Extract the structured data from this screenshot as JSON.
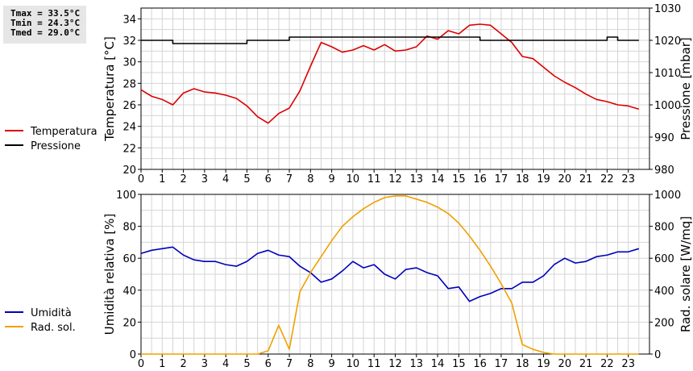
{
  "stats": {
    "tmax": "Tmax = 33.5°C",
    "tmin": "Tmin = 24.3°C",
    "tmed": "Tmed = 29.0°C"
  },
  "chart_data": [
    {
      "type": "line",
      "x_ticks": [
        "0",
        "1",
        "2",
        "3",
        "4",
        "5",
        "6",
        "7",
        "8",
        "9",
        "10",
        "11",
        "12",
        "13",
        "14",
        "15",
        "16",
        "17",
        "18",
        "19",
        "20",
        "21",
        "22",
        "23"
      ],
      "xlim": [
        0,
        24
      ],
      "ylabel": "Temperatura [°C]",
      "ylim": [
        20,
        35
      ],
      "y_ticks": [
        20,
        22,
        24,
        26,
        28,
        30,
        32,
        34
      ],
      "y2label": "Pressione [mbar]",
      "y2lim": [
        980,
        1030
      ],
      "y2_ticks": [
        980,
        990,
        1000,
        1010,
        1020,
        1030
      ],
      "grid": true,
      "legend_position": "left",
      "series": [
        {
          "name": "Temperatura",
          "axis": "left",
          "color": "#dd0000",
          "x": [
            0,
            0.5,
            1,
            1.5,
            2,
            2.5,
            3,
            3.5,
            4,
            4.5,
            5,
            5.5,
            6,
            6.5,
            7,
            7.5,
            8,
            8.5,
            9,
            9.5,
            10,
            10.5,
            11,
            11.5,
            12,
            12.5,
            13,
            13.5,
            14,
            14.5,
            15,
            15.5,
            16,
            16.5,
            17,
            17.5,
            18,
            18.5,
            19,
            19.5,
            20,
            20.5,
            21,
            21.5,
            22,
            22.5,
            23,
            23.5
          ],
          "values": [
            27.4,
            26.8,
            26.5,
            26.0,
            27.1,
            27.5,
            27.2,
            27.1,
            26.9,
            26.6,
            25.9,
            24.9,
            24.3,
            25.2,
            25.7,
            27.3,
            29.6,
            31.8,
            31.4,
            30.9,
            31.1,
            31.5,
            31.1,
            31.6,
            31.0,
            31.1,
            31.4,
            32.4,
            32.1,
            32.9,
            32.6,
            33.4,
            33.5,
            33.4,
            32.6,
            31.8,
            30.5,
            30.3,
            29.5,
            28.7,
            28.1,
            27.6,
            27.0,
            26.5,
            26.3,
            26.0,
            25.9,
            25.6
          ]
        },
        {
          "name": "Pressione",
          "axis": "right",
          "color": "#000000",
          "x": [
            0,
            1,
            1.5,
            4.5,
            5,
            6.5,
            7,
            15.5,
            16,
            21.5,
            22,
            22.5,
            23.5
          ],
          "values": [
            1020,
            1020,
            1019,
            1019,
            1020,
            1020,
            1021,
            1021,
            1020,
            1020,
            1021,
            1020,
            1020
          ]
        }
      ]
    },
    {
      "type": "line",
      "x_ticks": [
        "0",
        "1",
        "2",
        "3",
        "4",
        "5",
        "6",
        "7",
        "8",
        "9",
        "10",
        "11",
        "12",
        "13",
        "14",
        "15",
        "16",
        "17",
        "18",
        "19",
        "20",
        "21",
        "22",
        "23"
      ],
      "xlim": [
        0,
        24
      ],
      "ylabel": "Umidità relativa [%]",
      "ylim": [
        0,
        100
      ],
      "y_ticks": [
        0,
        20,
        40,
        60,
        80,
        100
      ],
      "y2label": "Rad. solare [W/mq]",
      "y2lim": [
        0,
        1000
      ],
      "y2_ticks": [
        0,
        200,
        400,
        600,
        800,
        1000
      ],
      "grid": true,
      "legend_position": "left",
      "series": [
        {
          "name": "Umidità",
          "axis": "left",
          "color": "#0000bb",
          "x": [
            0,
            0.5,
            1,
            1.5,
            2,
            2.5,
            3,
            3.5,
            4,
            4.5,
            5,
            5.5,
            6,
            6.5,
            7,
            7.5,
            8,
            8.5,
            9,
            9.5,
            10,
            10.5,
            11,
            11.5,
            12,
            12.5,
            13,
            13.5,
            14,
            14.5,
            15,
            15.5,
            16,
            16.5,
            17,
            17.5,
            18,
            18.5,
            19,
            19.5,
            20,
            20.5,
            21,
            21.5,
            22,
            22.5,
            23,
            23.5
          ],
          "values": [
            63,
            65,
            66,
            67,
            62,
            59,
            58,
            58,
            56,
            55,
            58,
            63,
            65,
            62,
            61,
            55,
            51,
            45,
            47,
            52,
            58,
            54,
            56,
            50,
            47,
            53,
            54,
            51,
            49,
            41,
            42,
            33,
            36,
            38,
            41,
            41,
            45,
            45,
            49,
            56,
            60,
            57,
            58,
            61,
            62,
            64,
            64,
            66
          ]
        },
        {
          "name": "Rad. sol.",
          "axis": "right",
          "color": "#f0a000",
          "x": [
            0,
            0.5,
            1,
            1.5,
            2,
            2.5,
            3,
            3.5,
            4,
            4.5,
            5,
            5.5,
            6,
            6.5,
            7,
            7.5,
            8,
            8.5,
            9,
            9.5,
            10,
            10.5,
            11,
            11.5,
            12,
            12.5,
            13,
            13.5,
            14,
            14.5,
            15,
            15.5,
            16,
            16.5,
            17,
            17.5,
            18,
            18.5,
            19,
            19.5,
            20,
            20.5,
            21,
            21.5,
            22,
            22.5,
            23,
            23.5
          ],
          "values": [
            0,
            0,
            0,
            0,
            0,
            0,
            0,
            0,
            0,
            0,
            0,
            0,
            20,
            180,
            30,
            390,
            510,
            610,
            710,
            800,
            860,
            910,
            950,
            980,
            990,
            990,
            970,
            950,
            920,
            880,
            820,
            740,
            650,
            550,
            440,
            320,
            60,
            30,
            10,
            0,
            0,
            0,
            0,
            0,
            0,
            0,
            0,
            0
          ]
        }
      ]
    }
  ]
}
